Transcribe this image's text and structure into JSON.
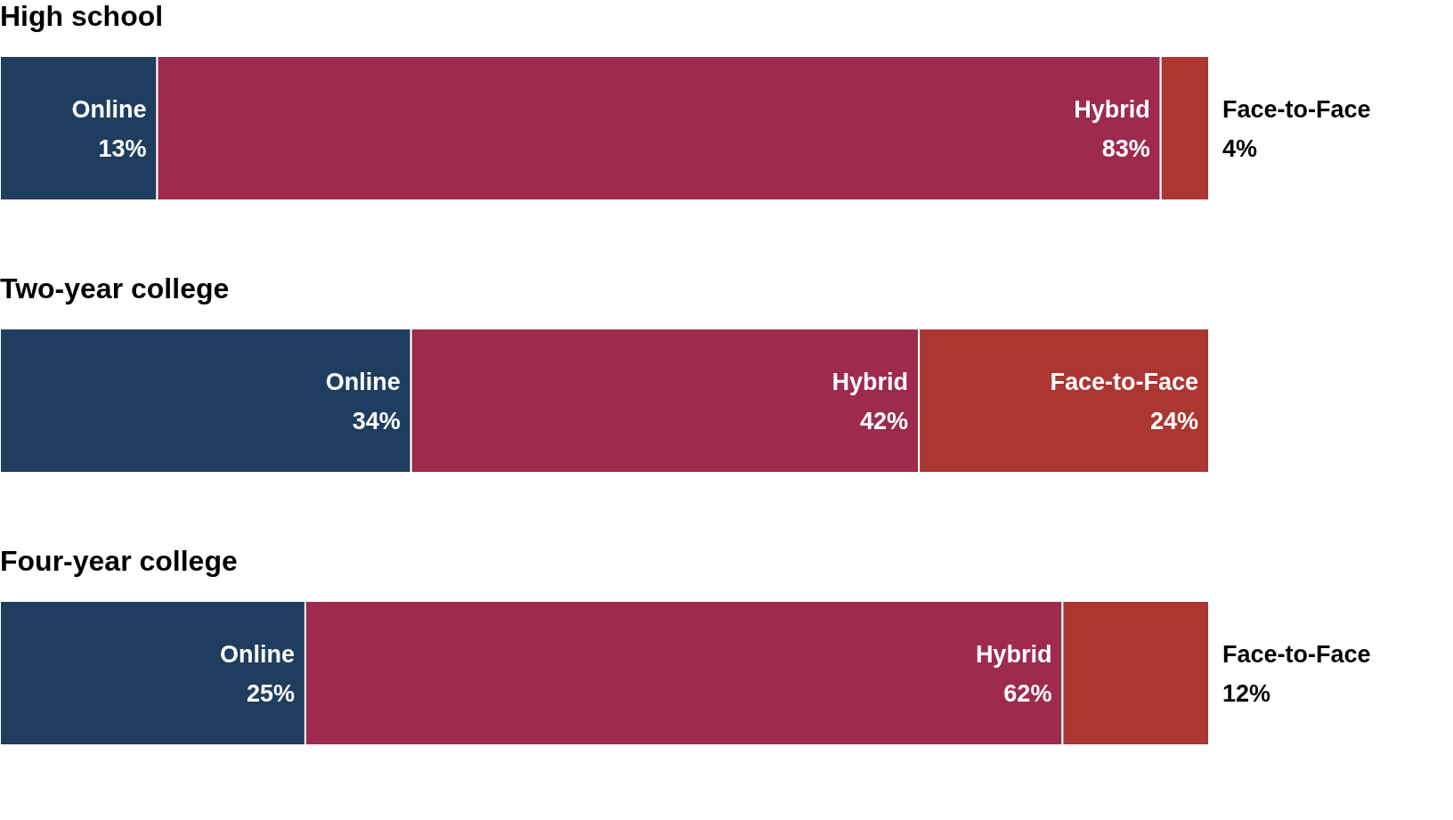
{
  "chart_data": [
    {
      "type": "bar",
      "title": "High school",
      "orientation": "horizontal",
      "stacked": true,
      "categories": [
        null
      ],
      "tick_labels": false,
      "series": [
        {
          "name": "Online",
          "color": "#1e3d5f",
          "values": [
            13
          ],
          "value_labels": [
            "13%"
          ]
        },
        {
          "name": "Hybrid",
          "color": "#9e2a4e",
          "values": [
            83
          ],
          "value_labels": [
            "83%"
          ]
        },
        {
          "name": "Face-to-Face",
          "color": "#ab3632",
          "values": [
            4
          ],
          "value_labels": [
            "4%"
          ]
        }
      ]
    },
    {
      "type": "bar",
      "title": "Two-year college",
      "orientation": "horizontal",
      "stacked": true,
      "categories": [
        null
      ],
      "tick_labels": false,
      "series": [
        {
          "name": "Online",
          "color": "#1e3d5f",
          "values": [
            34
          ],
          "value_labels": [
            "34%"
          ]
        },
        {
          "name": "Hybrid",
          "color": "#9e2a4e",
          "values": [
            42
          ],
          "value_labels": [
            "42%"
          ]
        },
        {
          "name": "Face-to-Face",
          "color": "#ab3632",
          "values": [
            24
          ],
          "value_labels": [
            "24%"
          ]
        }
      ]
    },
    {
      "type": "bar",
      "title": "Four-year college",
      "orientation": "horizontal",
      "stacked": true,
      "categories": [
        null
      ],
      "tick_labels": false,
      "series": [
        {
          "name": "Online",
          "color": "#1e3d5f",
          "values": [
            25
          ],
          "value_labels": [
            "25%"
          ]
        },
        {
          "name": "Hybrid",
          "color": "#9e2a4e",
          "values": [
            62
          ],
          "value_labels": [
            "62%"
          ]
        },
        {
          "name": "Face-to-Face",
          "color": "#ab3632",
          "values": [
            12
          ],
          "value_labels": [
            "12%"
          ]
        }
      ]
    }
  ]
}
